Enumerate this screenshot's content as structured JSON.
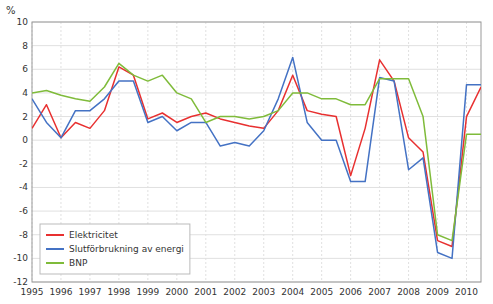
{
  "chart_data": {
    "type": "line",
    "y_label": "%",
    "x": [
      1995.0,
      1995.5,
      1996.0,
      1996.5,
      1997.0,
      1997.5,
      1998.0,
      1998.5,
      1999.0,
      1999.5,
      2000.0,
      2000.5,
      2001.0,
      2001.5,
      2002.0,
      2002.5,
      2003.0,
      2003.5,
      2004.0,
      2004.5,
      2005.0,
      2005.5,
      2006.0,
      2006.5,
      2007.0,
      2007.5,
      2008.0,
      2008.5,
      2009.0,
      2009.5,
      2010.0,
      2010.5
    ],
    "series": [
      {
        "name": "Elektricitet",
        "color": "#e83030",
        "values": [
          1.0,
          3.0,
          0.2,
          1.5,
          1.0,
          2.5,
          6.2,
          5.5,
          1.8,
          2.3,
          1.5,
          2.0,
          2.3,
          1.8,
          1.5,
          1.2,
          1.0,
          2.5,
          5.5,
          2.5,
          2.2,
          2.0,
          -3.0,
          1.0,
          6.8,
          5.0,
          0.2,
          -1.0,
          -8.5,
          -9.0,
          2.0,
          4.5
        ]
      },
      {
        "name": "Slutförbrukning av energi",
        "color": "#4472c4",
        "values": [
          3.5,
          1.5,
          0.2,
          2.5,
          2.5,
          3.5,
          5.0,
          5.0,
          1.5,
          2.0,
          0.8,
          1.5,
          1.5,
          -0.5,
          -0.2,
          -0.5,
          0.8,
          3.5,
          7.0,
          1.5,
          0.0,
          0.0,
          -3.5,
          -3.5,
          5.3,
          5.0,
          -2.5,
          -1.5,
          -9.5,
          -10.0,
          4.7,
          4.7
        ]
      },
      {
        "name": "BNP",
        "color": "#7fbb3a",
        "values": [
          4.0,
          4.2,
          3.8,
          3.5,
          3.3,
          4.5,
          6.5,
          5.5,
          5.0,
          5.5,
          4.0,
          3.5,
          1.5,
          2.0,
          2.0,
          1.8,
          2.0,
          2.5,
          4.0,
          4.0,
          3.5,
          3.5,
          3.0,
          3.0,
          5.2,
          5.2,
          5.2,
          2.0,
          -8.0,
          -8.5,
          0.5,
          0.5
        ]
      }
    ],
    "xlim": [
      1995,
      2010.5
    ],
    "xticks": [
      1995,
      1996,
      1997,
      1998,
      1999,
      2000,
      2001,
      2002,
      2003,
      2004,
      2005,
      2006,
      2007,
      2008,
      2009,
      2010
    ],
    "ylim": [
      -12,
      10
    ],
    "yticks": [
      -12,
      -10,
      -8,
      -6,
      -4,
      -2,
      0,
      2,
      4,
      6,
      8,
      10
    ],
    "grid": true,
    "legend": "lower left"
  }
}
